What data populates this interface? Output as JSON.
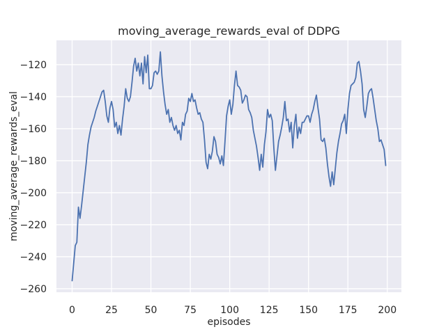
{
  "figure": {
    "background": "#ffffff"
  },
  "chart_data": {
    "type": "line",
    "title": "moving_average_rewards_eval of DDPG",
    "xlabel": "episodes",
    "ylabel": "moving_average_rewards_eval",
    "x_ticks": [
      0,
      25,
      50,
      75,
      100,
      125,
      150,
      175,
      200
    ],
    "y_ticks": [
      -260,
      -240,
      -220,
      -200,
      -180,
      -160,
      -140,
      -120
    ],
    "xlim": [
      -9.95,
      208.95
    ],
    "ylim": [
      -262.2,
      -104.8
    ],
    "grid": true,
    "legend_position": "none",
    "style": {
      "axes_background": "#EAEAF2",
      "grid_color": "#FFFFFF",
      "line_color": "#4C72B0",
      "text_color": "#262626"
    },
    "series": [
      {
        "name": "moving_average_rewards_eval",
        "x_start": 0,
        "x_step": 1,
        "values": [
          -255,
          -244,
          -233,
          -231,
          -209,
          -216,
          -208,
          -199,
          -190,
          -181,
          -170,
          -164,
          -159,
          -156,
          -153,
          -149,
          -146,
          -143,
          -140,
          -137,
          -136,
          -143,
          -152,
          -156,
          -147,
          -143,
          -148,
          -159,
          -156,
          -163,
          -158,
          -164,
          -154,
          -146,
          -135,
          -141,
          -143,
          -140,
          -131,
          -121,
          -116,
          -124,
          -119,
          -127,
          -119,
          -132,
          -115,
          -125,
          -114,
          -135,
          -135,
          -133,
          -125,
          -124,
          -126,
          -124,
          -112,
          -127,
          -137,
          -145,
          -151,
          -148,
          -156,
          -153,
          -158,
          -161,
          -158,
          -163,
          -161,
          -167,
          -156,
          -158,
          -151,
          -149,
          -141,
          -143,
          -138,
          -143,
          -142,
          -147,
          -151,
          -150,
          -154,
          -156,
          -167,
          -181,
          -185,
          -176,
          -179,
          -174,
          -165,
          -168,
          -176,
          -178,
          -182,
          -177,
          -183,
          -168,
          -152,
          -146,
          -142,
          -151,
          -145,
          -133,
          -124,
          -133,
          -134,
          -136,
          -144,
          -142,
          -139,
          -140,
          -148,
          -150,
          -153,
          -161,
          -166,
          -171,
          -178,
          -186,
          -176,
          -184,
          -170,
          -162,
          -148,
          -153,
          -151,
          -155,
          -172,
          -186,
          -177,
          -168,
          -164,
          -159,
          -153,
          -143,
          -155,
          -154,
          -162,
          -156,
          -172,
          -158,
          -151,
          -166,
          -159,
          -163,
          -156,
          -156,
          -154,
          -152,
          -152,
          -156,
          -151,
          -148,
          -143,
          -139,
          -147,
          -154,
          -167,
          -168,
          -166,
          -172,
          -182,
          -190,
          -196,
          -187,
          -195,
          -185,
          -175,
          -168,
          -163,
          -157,
          -155,
          -151,
          -163,
          -148,
          -138,
          -133,
          -132,
          -131,
          -128,
          -119,
          -118,
          -124,
          -132,
          -148,
          -153,
          -146,
          -138,
          -136,
          -135,
          -141,
          -148,
          -155,
          -160,
          -168,
          -167,
          -170,
          -173,
          -183
        ]
      }
    ]
  }
}
